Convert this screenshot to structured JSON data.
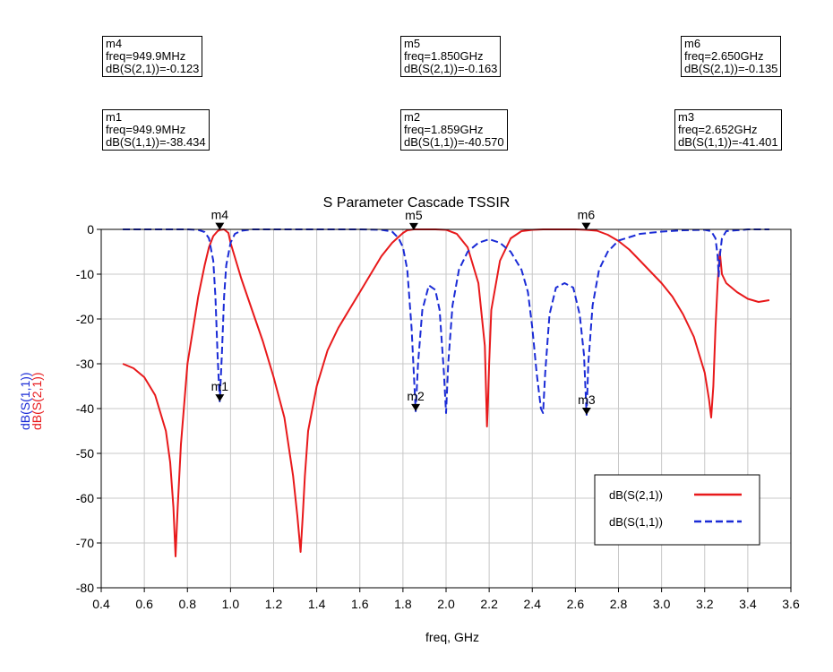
{
  "chart_data": {
    "type": "line",
    "title": "S Parameter Cascade TSSIR",
    "xlabel": "freq, GHz",
    "ylabels": [
      "dB(S(1,1))",
      "dB(S(2,1))"
    ],
    "xlim": [
      0.4,
      3.6
    ],
    "ylim": [
      -80,
      0
    ],
    "x_ticks": [
      "0.4",
      "0.6",
      "0.8",
      "1.0",
      "1.2",
      "1.4",
      "1.6",
      "1.8",
      "2.0",
      "2.2",
      "2.4",
      "2.6",
      "2.8",
      "3.0",
      "3.2",
      "3.4",
      "3.6"
    ],
    "y_ticks": [
      "0",
      "-10",
      "-20",
      "-30",
      "-40",
      "-50",
      "-60",
      "-70",
      "-80"
    ],
    "grid": true,
    "legend_position": "bottom-right",
    "series": [
      {
        "name": "dB(S(2,1))",
        "color": "#e8191b",
        "style": "solid",
        "x": [
          0.5,
          0.55,
          0.6,
          0.65,
          0.7,
          0.72,
          0.735,
          0.745,
          0.755,
          0.77,
          0.8,
          0.85,
          0.88,
          0.9,
          0.92,
          0.94,
          0.95,
          0.97,
          0.99,
          1.0,
          1.05,
          1.1,
          1.15,
          1.2,
          1.25,
          1.29,
          1.31,
          1.325,
          1.335,
          1.345,
          1.36,
          1.4,
          1.45,
          1.5,
          1.55,
          1.6,
          1.65,
          1.7,
          1.75,
          1.8,
          1.82,
          1.85,
          1.9,
          1.95,
          2.0,
          2.05,
          2.1,
          2.15,
          2.18,
          2.19,
          2.195,
          2.2,
          2.21,
          2.25,
          2.3,
          2.35,
          2.4,
          2.45,
          2.5,
          2.55,
          2.6,
          2.65,
          2.7,
          2.75,
          2.8,
          2.85,
          2.9,
          2.95,
          3.0,
          3.05,
          3.1,
          3.15,
          3.2,
          3.22,
          3.23,
          3.24,
          3.25,
          3.26,
          3.27,
          3.28,
          3.3,
          3.35,
          3.4,
          3.45,
          3.5
        ],
        "y": [
          -30,
          -31,
          -33,
          -37,
          -45,
          -52,
          -62,
          -73,
          -62,
          -48,
          -30,
          -15,
          -8,
          -4,
          -1.5,
          -0.4,
          -0.12,
          0,
          -0.8,
          -3,
          -11,
          -18,
          -25,
          -33,
          -42,
          -55,
          -64,
          -72,
          -64,
          -55,
          -45,
          -35,
          -27,
          -22,
          -18,
          -14,
          -10,
          -6,
          -3,
          -0.8,
          -0.2,
          0,
          0,
          0,
          -0.1,
          -1,
          -4,
          -12,
          -26,
          -44,
          -38,
          -30,
          -18,
          -7,
          -2,
          -0.4,
          -0.1,
          0,
          0,
          0,
          0,
          -0.1,
          -0.3,
          -1.2,
          -2.6,
          -4.5,
          -7,
          -9.5,
          -12,
          -15,
          -19,
          -24,
          -32,
          -38,
          -42,
          -35,
          -22,
          -12,
          -5,
          -10,
          -12,
          -14,
          -15.5,
          -16.2,
          -15.8
        ]
      },
      {
        "name": "dB(S(1,1))",
        "color": "#1a2bd6",
        "style": "dashed",
        "x": [
          0.5,
          0.6,
          0.7,
          0.8,
          0.85,
          0.88,
          0.9,
          0.92,
          0.93,
          0.94,
          0.9499,
          0.96,
          0.97,
          0.98,
          1.0,
          1.02,
          1.05,
          1.1,
          1.2,
          1.4,
          1.6,
          1.7,
          1.75,
          1.78,
          1.8,
          1.82,
          1.84,
          1.859,
          1.87,
          1.89,
          1.92,
          1.95,
          1.97,
          1.99,
          2.0,
          2.01,
          2.03,
          2.06,
          2.1,
          2.15,
          2.2,
          2.25,
          2.3,
          2.35,
          2.38,
          2.4,
          2.42,
          2.44,
          2.45,
          2.46,
          2.48,
          2.51,
          2.55,
          2.59,
          2.62,
          2.64,
          2.652,
          2.66,
          2.68,
          2.71,
          2.75,
          2.8,
          2.9,
          3.0,
          3.1,
          3.2,
          3.23,
          3.25,
          3.26,
          3.265,
          3.27,
          3.28,
          3.3,
          3.4,
          3.5
        ],
        "y": [
          0,
          0,
          0,
          0,
          -0.1,
          -0.6,
          -2,
          -7,
          -15,
          -28,
          -38.4,
          -28,
          -15,
          -8,
          -3,
          -1,
          -0.3,
          0,
          0,
          0,
          0,
          -0.1,
          -0.5,
          -2,
          -4,
          -9,
          -22,
          -40.6,
          -30,
          -18,
          -12.5,
          -13.5,
          -18,
          -32,
          -41,
          -30,
          -17,
          -9,
          -5,
          -3,
          -2.2,
          -3,
          -5,
          -9,
          -14,
          -22,
          -32,
          -40,
          -41,
          -32,
          -19,
          -13,
          -12,
          -13,
          -19,
          -28,
          -41.4,
          -30,
          -17,
          -9,
          -5,
          -2.5,
          -1,
          -0.5,
          -0.2,
          -0.1,
          -0.4,
          -2,
          -6,
          -10.5,
          -6,
          -2,
          -0.4,
          0,
          0
        ]
      }
    ],
    "markers": [
      {
        "id": "m1",
        "x": 0.9499,
        "y": -38.434,
        "label_lines": [
          "m1",
          "freq=949.9MHz",
          "dB(S(1,1))=-38.434"
        ]
      },
      {
        "id": "m2",
        "x": 1.859,
        "y": -40.57,
        "label_lines": [
          "m2",
          "freq=1.859GHz",
          "dB(S(1,1))=-40.570"
        ]
      },
      {
        "id": "m3",
        "x": 2.652,
        "y": -41.401,
        "label_lines": [
          "m3",
          "freq=2.652GHz",
          "dB(S(1,1))=-41.401"
        ]
      },
      {
        "id": "m4",
        "x": 0.9499,
        "y": -0.123,
        "label_lines": [
          "m4",
          "freq=949.9MHz",
          "dB(S(2,1))=-0.123"
        ]
      },
      {
        "id": "m5",
        "x": 1.85,
        "y": -0.163,
        "label_lines": [
          "m5",
          "freq=1.850GHz",
          "dB(S(2,1))=-0.163"
        ]
      },
      {
        "id": "m6",
        "x": 2.65,
        "y": -0.135,
        "label_lines": [
          "m6",
          "freq=2.650GHz",
          "dB(S(2,1))=-0.135"
        ]
      }
    ]
  }
}
